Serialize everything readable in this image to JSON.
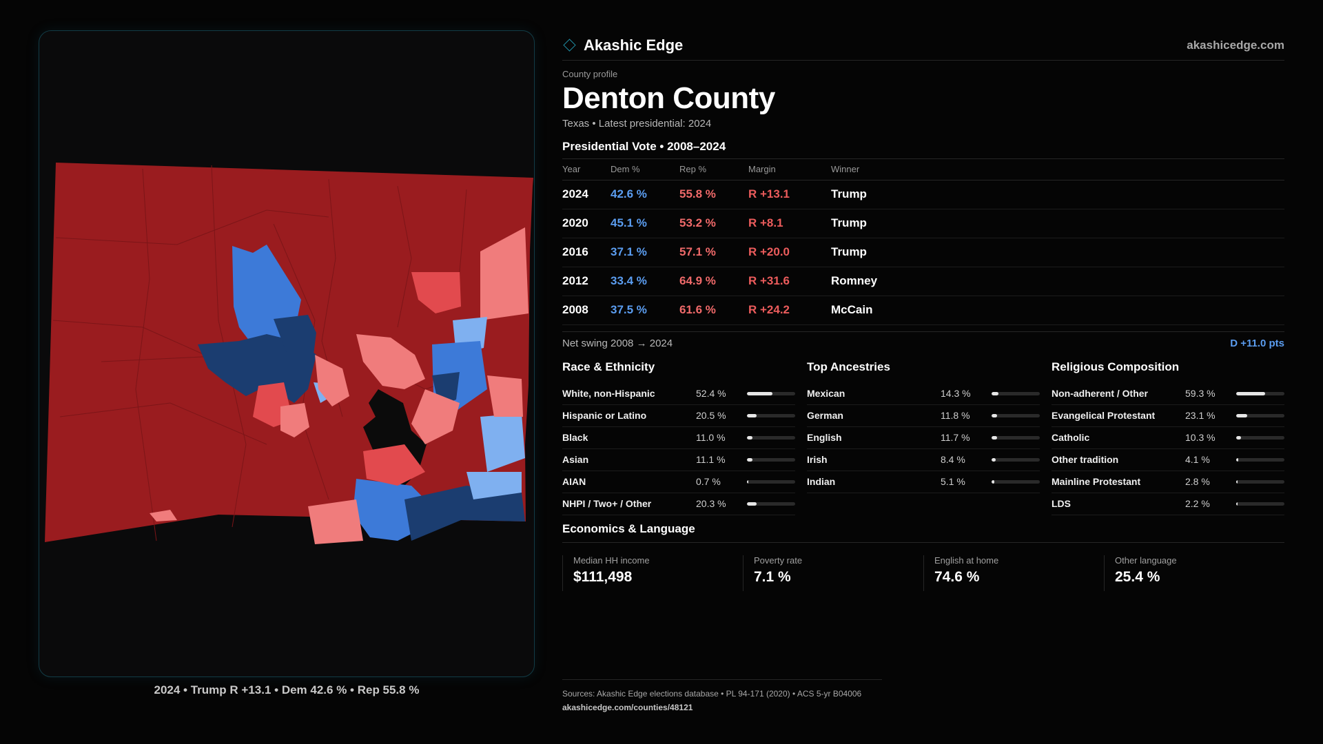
{
  "brand": {
    "name": "Akashic Edge",
    "url": "akashicedge.com"
  },
  "county": {
    "eyebrow": "County profile",
    "name": "Denton County",
    "subtitle": "Texas • Latest presidential: 2024"
  },
  "vote": {
    "title": "Presidential Vote • 2008–2024",
    "columns": [
      "Year",
      "Dem %",
      "Rep %",
      "Margin",
      "Winner"
    ],
    "rows": [
      {
        "year": "2024",
        "dem": "42.6 %",
        "rep": "55.8 %",
        "margin": "R +13.1",
        "winner": "Trump"
      },
      {
        "year": "2020",
        "dem": "45.1 %",
        "rep": "53.2 %",
        "margin": "R +8.1",
        "winner": "Trump"
      },
      {
        "year": "2016",
        "dem": "37.1 %",
        "rep": "57.1 %",
        "margin": "R +20.0",
        "winner": "Trump"
      },
      {
        "year": "2012",
        "dem": "33.4 %",
        "rep": "64.9 %",
        "margin": "R +31.6",
        "winner": "Romney"
      },
      {
        "year": "2008",
        "dem": "37.5 %",
        "rep": "61.6 %",
        "margin": "R +24.2",
        "winner": "McCain"
      }
    ],
    "swing_label": "Net swing 2008 → 2024",
    "swing_value": "D +11.0 pts"
  },
  "race": {
    "title": "Race & Ethnicity",
    "items": [
      {
        "label": "White, non-Hispanic",
        "value": "52.4 %",
        "pct": 52.4
      },
      {
        "label": "Hispanic or Latino",
        "value": "20.5 %",
        "pct": 20.5
      },
      {
        "label": "Black",
        "value": "11.0 %",
        "pct": 11.0
      },
      {
        "label": "Asian",
        "value": "11.1 %",
        "pct": 11.1
      },
      {
        "label": "AIAN",
        "value": "0.7 %",
        "pct": 0.7
      },
      {
        "label": "NHPI / Two+ / Other",
        "value": "20.3 %",
        "pct": 20.3
      }
    ]
  },
  "ancestry": {
    "title": "Top Ancestries",
    "items": [
      {
        "label": "Mexican",
        "value": "14.3 %",
        "pct": 14.3
      },
      {
        "label": "German",
        "value": "11.8 %",
        "pct": 11.8
      },
      {
        "label": "English",
        "value": "11.7 %",
        "pct": 11.7
      },
      {
        "label": "Irish",
        "value": "8.4 %",
        "pct": 8.4
      },
      {
        "label": "Indian",
        "value": "5.1 %",
        "pct": 5.1
      }
    ]
  },
  "religion": {
    "title": "Religious Composition",
    "items": [
      {
        "label": "Non-adherent / Other",
        "value": "59.3 %",
        "pct": 59.3
      },
      {
        "label": "Evangelical Protestant",
        "value": "23.1 %",
        "pct": 23.1
      },
      {
        "label": "Catholic",
        "value": "10.3 %",
        "pct": 10.3
      },
      {
        "label": "Other tradition",
        "value": "4.1 %",
        "pct": 4.1
      },
      {
        "label": "Mainline Protestant",
        "value": "2.8 %",
        "pct": 2.8
      },
      {
        "label": "LDS",
        "value": "2.2 %",
        "pct": 2.2
      }
    ]
  },
  "economics": {
    "title": "Economics & Language",
    "cards": [
      {
        "label": "Median HH income",
        "value": "$111,498"
      },
      {
        "label": "Poverty rate",
        "value": "7.1 %"
      },
      {
        "label": "English at home",
        "value": "74.6 %"
      },
      {
        "label": "Other language",
        "value": "25.4 %"
      }
    ]
  },
  "map": {
    "caption": "2024 • Trump R +13.1 • Dem 42.6 % • Rep 55.8 %",
    "colors": {
      "safe_r": "#9a1c1f",
      "lean_r": "#e24a4e",
      "tilt_r": "#f07c7c",
      "tilt_d": "#7fb0f0",
      "lean_d": "#3d7ad8",
      "safe_d": "#1b3d70",
      "water": "#0b0b0b"
    }
  },
  "sources": {
    "text": "Sources: Akashic Edge elections database • PL 94-171 (2020) • ACS 5-yr B04006",
    "url": "akashicedge.com/counties/48121"
  }
}
